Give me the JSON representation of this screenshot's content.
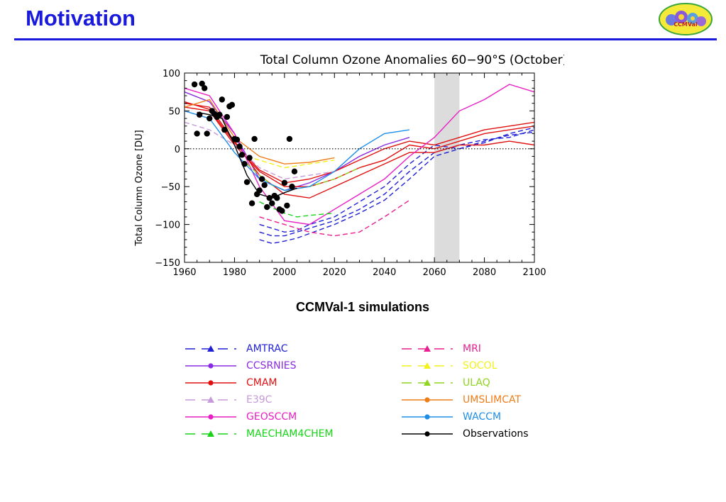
{
  "slide": {
    "title": "Motivation",
    "logo_text": "CCMVal"
  },
  "chart_data": {
    "type": "line",
    "title": "Total Column Ozone Anomalies 60−90°S (October)",
    "xlabel": "",
    "ylabel": "Total Column Ozone [DU]",
    "xlim": [
      1960,
      2100
    ],
    "ylim": [
      -150,
      100
    ],
    "xticks": [
      "1960",
      "1980",
      "2000",
      "2020",
      "2040",
      "2060",
      "2080",
      "2100"
    ],
    "yticks": [
      "100",
      "50",
      "0",
      "−50",
      "−100",
      "−150"
    ],
    "reference_line": 0,
    "shaded_band": [
      2060,
      2070
    ],
    "caption": "CCMVal-1 simulations",
    "series": [
      {
        "name": "AMTRAC",
        "color": "#1f1fd6",
        "dash": "7,4",
        "marker": "triangle",
        "runs": [
          {
            "x": [
              1990,
              1995,
              2000,
              2005,
              2010,
              2020,
              2030,
              2040,
              2050,
              2060,
              2070,
              2080,
              2090,
              2100
            ],
            "y": [
              -120,
              -125,
              -122,
              -118,
              -112,
              -100,
              -85,
              -68,
              -40,
              -10,
              0,
              10,
              18,
              22
            ]
          },
          {
            "x": [
              1990,
              1995,
              2000,
              2005,
              2010,
              2020,
              2030,
              2040,
              2050,
              2060,
              2070,
              2080,
              2090,
              2100
            ],
            "y": [
              -110,
              -115,
              -115,
              -110,
              -105,
              -95,
              -80,
              -60,
              -30,
              -5,
              5,
              12,
              15,
              25
            ]
          },
          {
            "x": [
              1990,
              1995,
              2000,
              2005,
              2010,
              2020,
              2030,
              2040,
              2050,
              2060,
              2070,
              2080,
              2090,
              2100
            ],
            "y": [
              -100,
              -105,
              -110,
              -108,
              -100,
              -90,
              -70,
              -50,
              -20,
              5,
              0,
              8,
              20,
              28
            ]
          }
        ]
      },
      {
        "name": "CCSRNIES",
        "color": "#8a2be2",
        "dash": "",
        "marker": "circle",
        "runs": [
          {
            "x": [
              1960,
              1970,
              1980,
              1990,
              2000,
              2010,
              2020,
              2030,
              2040,
              2050
            ],
            "y": [
              75,
              62,
              20,
              -40,
              -55,
              -45,
              -30,
              -10,
              5,
              15
            ]
          }
        ]
      },
      {
        "name": "CMAM",
        "color": "#e01010",
        "dash": "",
        "marker": "circle",
        "runs": [
          {
            "x": [
              1960,
              1970,
              1980,
              1990,
              2000,
              2010,
              2020,
              2030,
              2040,
              2050,
              2060,
              2070,
              2080,
              2090,
              2100
            ],
            "y": [
              60,
              55,
              10,
              -35,
              -60,
              -65,
              -50,
              -35,
              -20,
              -5,
              -5,
              5,
              5,
              10,
              5
            ]
          },
          {
            "x": [
              1960,
              1970,
              1980,
              1990,
              2000,
              2010,
              2020,
              2030,
              2040,
              2050,
              2060,
              2070,
              2080,
              2090,
              2100
            ],
            "y": [
              55,
              50,
              5,
              -30,
              -50,
              -50,
              -40,
              -25,
              -15,
              5,
              0,
              10,
              20,
              25,
              30
            ]
          },
          {
            "x": [
              1960,
              1970,
              1980,
              1990,
              2000,
              2010,
              2020,
              2030,
              2040,
              2050,
              2060,
              2070,
              2080,
              2090,
              2100
            ],
            "y": [
              62,
              52,
              8,
              -28,
              -45,
              -40,
              -30,
              -15,
              0,
              10,
              5,
              15,
              25,
              30,
              35
            ]
          }
        ]
      },
      {
        "name": "E39C",
        "color": "#c79ad9",
        "dash": "7,4",
        "marker": "triangle",
        "runs": [
          {
            "x": [
              1960,
              1970,
              1980,
              1990,
              2000,
              2010,
              2020
            ],
            "y": [
              35,
              25,
              5,
              -25,
              -40,
              -35,
              -30
            ]
          }
        ]
      },
      {
        "name": "GEOSCCM",
        "color": "#e81fc4",
        "dash": "",
        "marker": "circle",
        "runs": [
          {
            "x": [
              1960,
              1970,
              1980,
              1990,
              2000,
              2010,
              2020,
              2030,
              2040,
              2050,
              2060,
              2070,
              2080,
              2090,
              2100
            ],
            "y": [
              80,
              70,
              20,
              -50,
              -95,
              -100,
              -80,
              -60,
              -40,
              -10,
              15,
              50,
              65,
              85,
              75
            ]
          }
        ]
      },
      {
        "name": "MAECHAM4CHEM",
        "color": "#16d416",
        "dash": "7,4",
        "marker": "triangle",
        "runs": [
          {
            "x": [
              1990,
              1995,
              2000,
              2005,
              2010,
              2020
            ],
            "y": [
              -70,
              -78,
              -85,
              -90,
              -88,
              -85
            ]
          }
        ]
      },
      {
        "name": "MRI",
        "color": "#e81f8e",
        "dash": "7,4",
        "marker": "triangle",
        "runs": [
          {
            "x": [
              1990,
              2000,
              2010,
              2020,
              2030,
              2040,
              2050
            ],
            "y": [
              -90,
              -100,
              -110,
              -115,
              -110,
              -90,
              -68
            ]
          }
        ]
      },
      {
        "name": "SOCOL",
        "color": "#f2f21a",
        "dash": "7,4",
        "marker": "triangle",
        "runs": [
          {
            "x": [
              1985,
              1990,
              1995,
              2000,
              2010,
              2020
            ],
            "y": [
              -10,
              -15,
              -20,
              -25,
              -20,
              -15
            ]
          }
        ]
      },
      {
        "name": "ULAQ",
        "color": "#8fd41f",
        "dash": "7,4",
        "marker": "triangle",
        "runs": [
          {
            "x": [
              1985,
              1990,
              1995,
              2000,
              2010,
              2020,
              2030
            ],
            "y": [
              -20,
              -35,
              -48,
              -55,
              -50,
              -40,
              -25
            ]
          }
        ]
      },
      {
        "name": "UMSLIMCAT",
        "color": "#ef7d1a",
        "dash": "",
        "marker": "circle",
        "runs": [
          {
            "x": [
              1960,
              1970,
              1980,
              1990,
              2000,
              2010,
              2020
            ],
            "y": [
              55,
              65,
              15,
              -10,
              -20,
              -18,
              -12
            ]
          }
        ]
      },
      {
        "name": "WACCM",
        "color": "#1f8ee8",
        "dash": "",
        "marker": "circle",
        "runs": [
          {
            "x": [
              1960,
              1970,
              1980,
              1990,
              2000,
              2010,
              2020,
              2030,
              2040,
              2050
            ],
            "y": [
              50,
              40,
              -5,
              -40,
              -55,
              -50,
              -30,
              0,
              20,
              25
            ]
          }
        ]
      },
      {
        "name": "Observations",
        "color": "#000000",
        "dash": "",
        "marker": "circle",
        "runs": [
          {
            "x": [
              1965,
              1970,
              1975,
              1980,
              1985,
              1990,
              1995,
              2000,
              2005
            ],
            "y": [
              48,
              45,
              40,
              5,
              -35,
              -60,
              -65,
              -58,
              -52
            ]
          }
        ],
        "points": [
          [
            1964,
            85
          ],
          [
            1965,
            20
          ],
          [
            1966,
            45
          ],
          [
            1967,
            86
          ],
          [
            1968,
            80
          ],
          [
            1969,
            20
          ],
          [
            1970,
            40
          ],
          [
            1971,
            50
          ],
          [
            1972,
            46
          ],
          [
            1973,
            42
          ],
          [
            1974,
            45
          ],
          [
            1975,
            65
          ],
          [
            1976,
            25
          ],
          [
            1977,
            42
          ],
          [
            1978,
            56
          ],
          [
            1979,
            58
          ],
          [
            1980,
            13
          ],
          [
            1981,
            12
          ],
          [
            1982,
            3
          ],
          [
            1983,
            -8
          ],
          [
            1984,
            -20
          ],
          [
            1985,
            -44
          ],
          [
            1986,
            -12
          ],
          [
            1987,
            -72
          ],
          [
            1988,
            13
          ],
          [
            1989,
            -60
          ],
          [
            1990,
            -55
          ],
          [
            1991,
            -40
          ],
          [
            1992,
            -48
          ],
          [
            1993,
            -77
          ],
          [
            1994,
            -65
          ],
          [
            1995,
            -72
          ],
          [
            1996,
            -62
          ],
          [
            1997,
            -65
          ],
          [
            1998,
            -80
          ],
          [
            1999,
            -82
          ],
          [
            2000,
            -45
          ],
          [
            2001,
            -75
          ],
          [
            2002,
            13
          ],
          [
            2003,
            -50
          ],
          [
            2004,
            -30
          ]
        ]
      }
    ]
  },
  "legend": {
    "col1": [
      "AMTRAC",
      "CCSRNIES",
      "CMAM",
      "E39C",
      "GEOSCCM",
      "MAECHAM4CHEM"
    ],
    "col2": [
      "MRI",
      "SOCOL",
      "ULAQ",
      "UMSLIMCAT",
      "WACCM",
      "Observations"
    ]
  }
}
